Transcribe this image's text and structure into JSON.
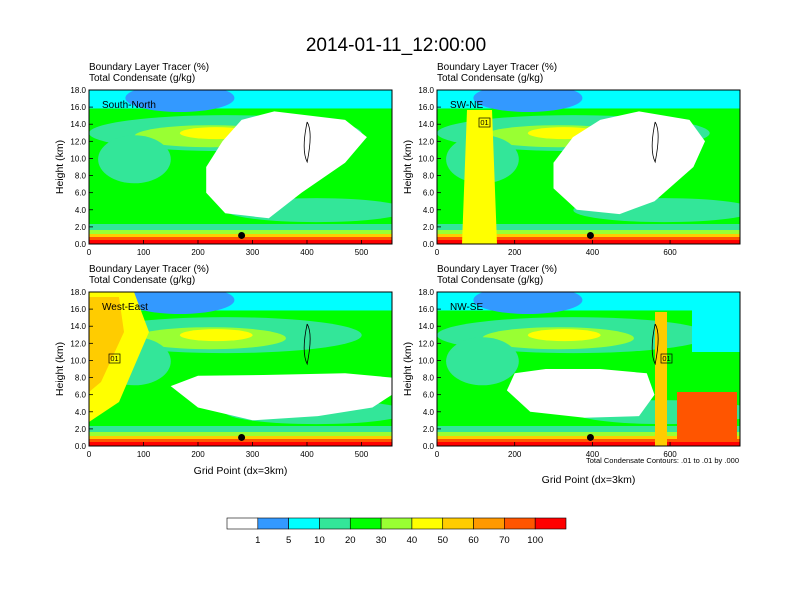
{
  "figure": {
    "title": "2014-01-11_12:00:00",
    "contour_note": "Total Condensate Contours: .01 to .01 by .000"
  },
  "colorbar": {
    "levels": [
      "1",
      "5",
      "10",
      "20",
      "30",
      "40",
      "50",
      "60",
      "70",
      "100"
    ],
    "colors": [
      "#ffffff",
      "#3399ff",
      "#00ffff",
      "#33e699",
      "#00ff00",
      "#99ff33",
      "#ffff00",
      "#ffcc00",
      "#ff9900",
      "#ff5500",
      "#ff0000"
    ]
  },
  "chart_data": [
    {
      "type": "heatmap",
      "subtitle_lines": [
        "Boundary Layer Tracer   (%)",
        "Total Condensate   (g/kg)"
      ],
      "label": "South-North",
      "ylabel": "Height (km)",
      "xlabel": "",
      "xlim": [
        0,
        556
      ],
      "ylim": [
        0,
        18
      ],
      "xticks": [
        "0",
        "100",
        "200",
        "300",
        "400",
        "500"
      ],
      "yticks": [
        "0.0",
        "2.0",
        "4.0",
        "6.0",
        "8.0",
        "10.0",
        "12.0",
        "14.0",
        "16.0",
        "18.0"
      ],
      "marker": {
        "x": 280,
        "y": 1.0
      },
      "box_label": "",
      "void": [
        [
          215,
          6
        ],
        [
          250,
          3.6
        ],
        [
          330,
          3
        ],
        [
          390,
          6
        ],
        [
          470,
          9.5
        ],
        [
          510,
          12.5
        ],
        [
          470,
          14.5
        ],
        [
          340,
          15.5
        ],
        [
          280,
          14.5
        ],
        [
          245,
          12
        ],
        [
          215,
          9
        ]
      ]
    },
    {
      "type": "heatmap",
      "subtitle_lines": [
        "Boundary Layer Tracer   (%)",
        "Total Condensate   (g/kg)"
      ],
      "label": "SW-NE",
      "ylabel": "Height (km)",
      "xlabel": "",
      "xlim": [
        0,
        780
      ],
      "ylim": [
        0,
        18
      ],
      "xticks": [
        "0",
        "200",
        "400",
        "600"
      ],
      "yticks": [
        "0.0",
        "2.0",
        "4.0",
        "6.0",
        "8.0",
        "10.0",
        "12.0",
        "14.0",
        "16.0",
        "18.0"
      ],
      "marker": {
        "x": 395,
        "y": 1.0
      },
      "box_label": "01",
      "void": [
        [
          300,
          6.5
        ],
        [
          360,
          4
        ],
        [
          470,
          3.5
        ],
        [
          560,
          5
        ],
        [
          660,
          9
        ],
        [
          690,
          12
        ],
        [
          650,
          14.5
        ],
        [
          520,
          15.5
        ],
        [
          420,
          14.5
        ],
        [
          350,
          12.5
        ],
        [
          300,
          9.5
        ]
      ]
    },
    {
      "type": "heatmap",
      "subtitle_lines": [
        "Boundary Layer Tracer   (%)",
        "Total Condensate   (g/kg)"
      ],
      "label": "West-East",
      "ylabel": "Height (km)",
      "xlabel": "Grid Point (dx=3km)",
      "xlim": [
        0,
        556
      ],
      "ylim": [
        0,
        18
      ],
      "xticks": [
        "0",
        "100",
        "200",
        "300",
        "400",
        "500"
      ],
      "yticks": [
        "0.0",
        "2.0",
        "4.0",
        "6.0",
        "8.0",
        "10.0",
        "12.0",
        "14.0",
        "16.0",
        "18.0"
      ],
      "marker": {
        "x": 280,
        "y": 1.0
      },
      "box_label": "01",
      "void": [
        [
          150,
          7
        ],
        [
          200,
          4.5
        ],
        [
          300,
          3
        ],
        [
          420,
          3.5
        ],
        [
          520,
          4.5
        ],
        [
          556,
          6
        ],
        [
          556,
          8
        ],
        [
          470,
          8.5
        ],
        [
          320,
          8.3
        ],
        [
          200,
          8.2
        ]
      ]
    },
    {
      "type": "heatmap",
      "subtitle_lines": [
        "Boundary Layer Tracer   (%)",
        "Total Condensate   (g/kg)"
      ],
      "label": "NW-SE",
      "ylabel": "Height (km)",
      "xlabel": "Grid Point (dx=3km)",
      "xlim": [
        0,
        780
      ],
      "ylim": [
        0,
        18
      ],
      "xticks": [
        "0",
        "200",
        "400",
        "600"
      ],
      "yticks": [
        "0.0",
        "2.0",
        "4.0",
        "6.0",
        "8.0",
        "10.0",
        "12.0",
        "14.0",
        "16.0",
        "18.0"
      ],
      "marker": {
        "x": 395,
        "y": 1.0
      },
      "box_label": "01",
      "void": [
        [
          180,
          6.5
        ],
        [
          240,
          4
        ],
        [
          380,
          3.3
        ],
        [
          520,
          3.5
        ],
        [
          560,
          6
        ],
        [
          540,
          8.5
        ],
        [
          420,
          9
        ],
        [
          280,
          9
        ],
        [
          200,
          8.5
        ]
      ]
    }
  ]
}
